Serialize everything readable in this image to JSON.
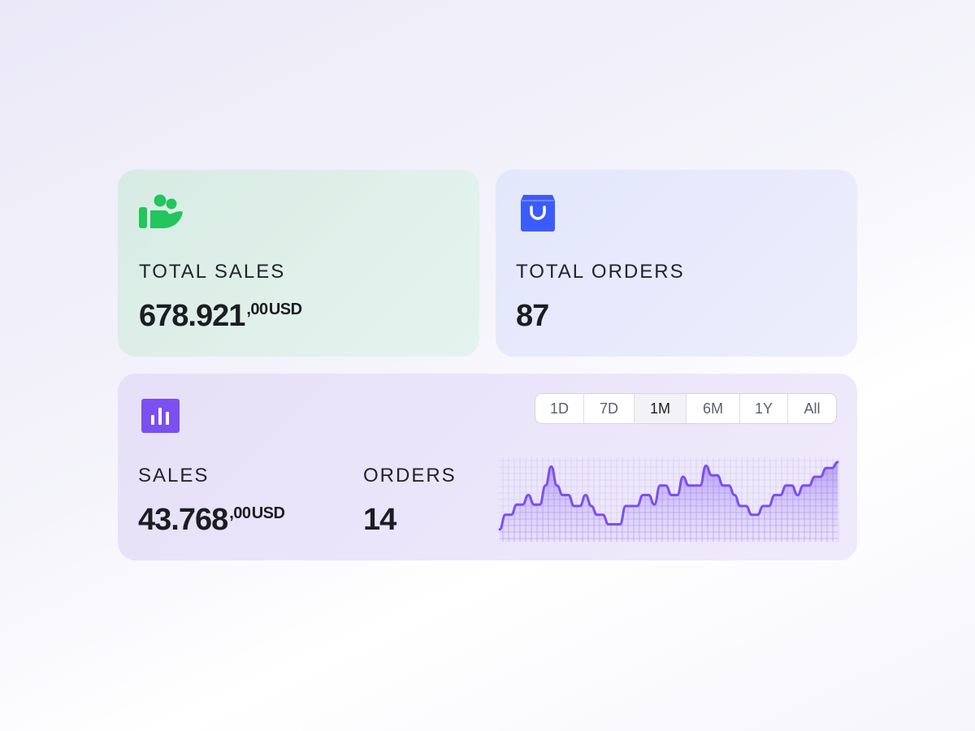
{
  "cards": {
    "total_sales": {
      "icon": "hand-holding-users-icon",
      "label": "TOTAL SALES",
      "value": "678.921",
      "fraction": ",00",
      "currency": "USD",
      "accent": "#22c55e"
    },
    "total_orders": {
      "icon": "shopping-bag-icon",
      "label": "TOTAL ORDERS",
      "value": "87",
      "accent": "#3b5bfd"
    },
    "summary": {
      "icon": "bar-chart-icon",
      "accent": "#7c4ff0",
      "sales": {
        "label": "SALES",
        "value": "43.768",
        "fraction": ",00",
        "currency": "USD"
      },
      "orders": {
        "label": "ORDERS",
        "value": "14"
      },
      "tabs": [
        {
          "label": "1D",
          "active": false
        },
        {
          "label": "7D",
          "active": false
        },
        {
          "label": "1M",
          "active": true
        },
        {
          "label": "6M",
          "active": false
        },
        {
          "label": "1Y",
          "active": false
        },
        {
          "label": "All",
          "active": false
        }
      ]
    }
  },
  "chart_data": {
    "type": "area",
    "color": "#7c4ff0",
    "grid": true,
    "values": [
      8,
      28,
      28,
      42,
      42,
      55,
      42,
      42,
      68,
      94,
      68,
      55,
      55,
      40,
      40,
      55,
      40,
      28,
      28,
      15,
      15,
      15,
      40,
      40,
      40,
      55,
      55,
      42,
      68,
      68,
      55,
      55,
      80,
      68,
      68,
      68,
      95,
      82,
      82,
      68,
      68,
      55,
      40,
      40,
      28,
      28,
      40,
      40,
      55,
      55,
      68,
      68,
      55,
      68,
      68,
      80,
      80,
      92,
      92,
      100
    ]
  }
}
